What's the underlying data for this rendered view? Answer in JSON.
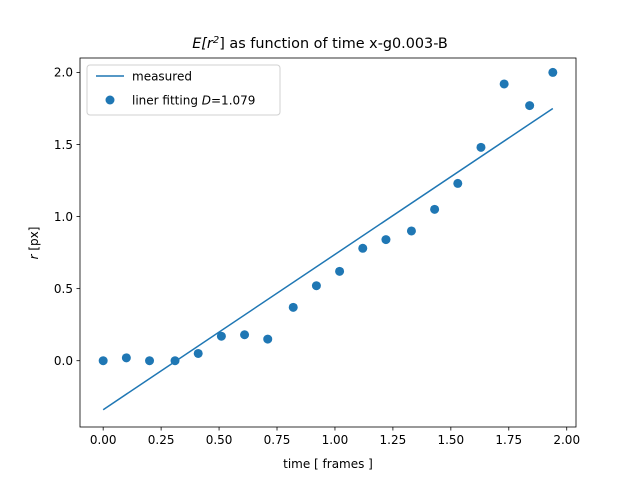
{
  "chart_data": {
    "type": "scatter",
    "title_prefix": "E[r",
    "title_sup": "2",
    "title_suffix": "] as function of time x-g0.003-B",
    "xlabel": "time [ frames ]",
    "ylabel_italic": "r",
    "ylabel_rest": " [px]",
    "xlim": [
      -0.1,
      2.04
    ],
    "ylim": [
      -0.46,
      2.1
    ],
    "xticks": [
      0.0,
      0.25,
      0.5,
      0.75,
      1.0,
      1.25,
      1.5,
      1.75,
      2.0
    ],
    "xtick_labels": [
      "0.00",
      "0.25",
      "0.50",
      "0.75",
      "1.00",
      "1.25",
      "1.50",
      "1.75",
      "2.00"
    ],
    "yticks": [
      0.0,
      0.5,
      1.0,
      1.5,
      2.0
    ],
    "ytick_labels": [
      "0.0",
      "0.5",
      "1.0",
      "1.5",
      "2.0"
    ],
    "legend_position": "upper-left",
    "series": [
      {
        "name": "measured",
        "kind": "line",
        "color": "#1f77b4",
        "x": [
          0.0,
          1.94
        ],
        "y": [
          -0.34,
          1.75
        ]
      },
      {
        "name": "liner fitting D=1.079",
        "name_prefix": "liner fitting ",
        "name_italic": "D",
        "name_suffix": "=1.079",
        "kind": "scatter",
        "color": "#1f77b4",
        "x": [
          0.0,
          0.1,
          0.2,
          0.31,
          0.41,
          0.51,
          0.61,
          0.71,
          0.82,
          0.92,
          1.02,
          1.12,
          1.22,
          1.33,
          1.43,
          1.53,
          1.63,
          1.73,
          1.84,
          1.94
        ],
        "y": [
          0.0,
          0.02,
          0.0,
          0.0,
          0.05,
          0.17,
          0.18,
          0.15,
          0.37,
          0.52,
          0.62,
          0.78,
          0.84,
          0.9,
          1.05,
          1.23,
          1.48,
          1.92,
          1.77,
          2.0
        ]
      }
    ]
  }
}
